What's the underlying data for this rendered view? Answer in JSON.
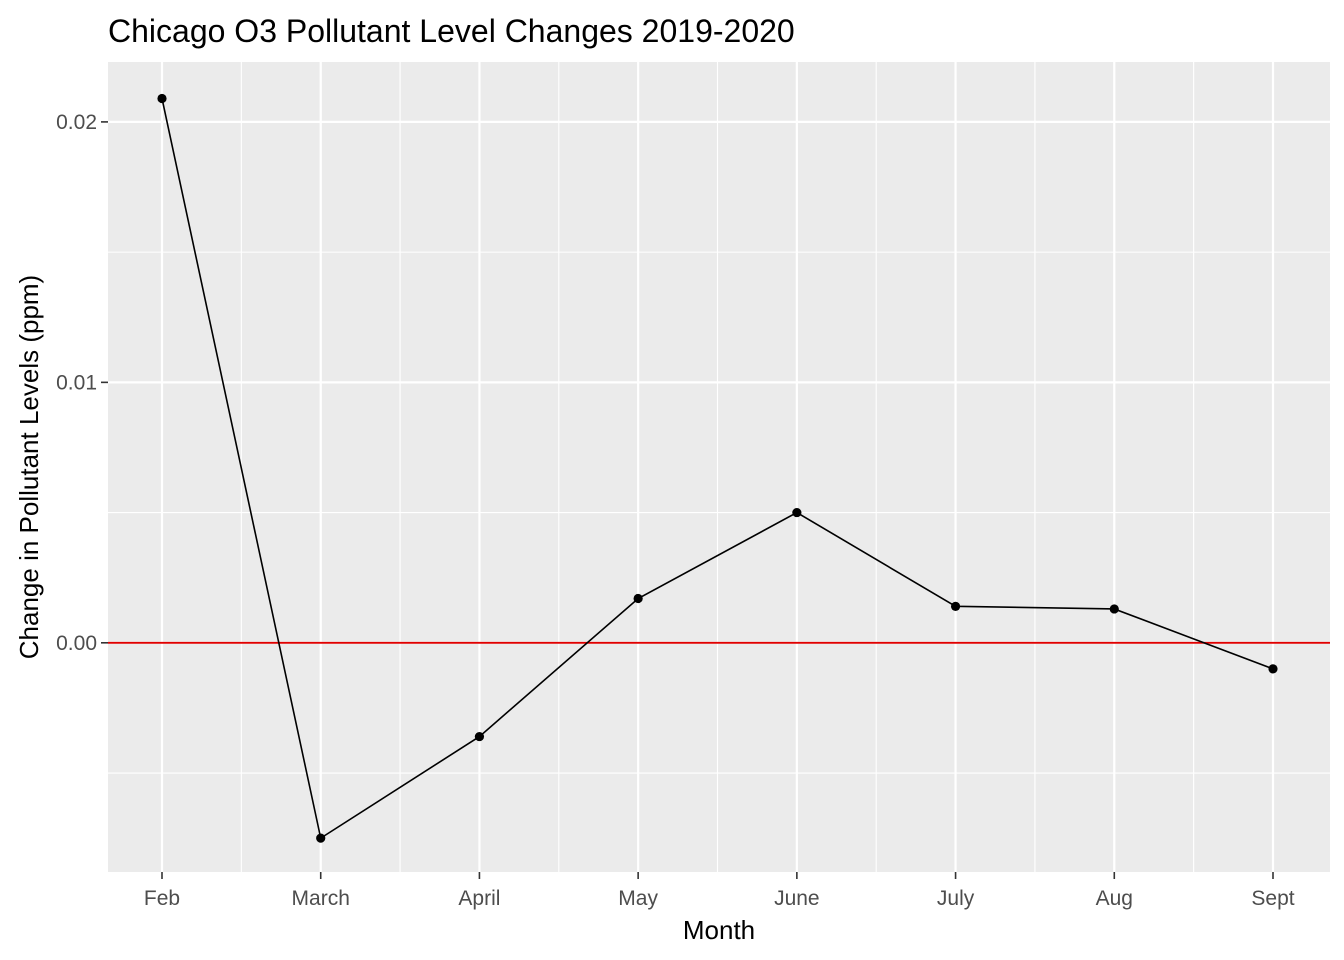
{
  "chart_data": {
    "type": "line",
    "title": "Chicago O3 Pollutant Level Changes 2019-2020",
    "xlabel": "Month",
    "ylabel": "Change in Pollutant Levels (ppm)",
    "categories": [
      "Feb",
      "March",
      "April",
      "May",
      "June",
      "July",
      "Aug",
      "Sept"
    ],
    "series": [
      {
        "values": [
          0.0209,
          -0.0075,
          -0.0036,
          0.0017,
          0.005,
          0.0014,
          0.0013,
          -0.001
        ]
      }
    ],
    "ylim": [
      -0.0088,
      0.0223
    ],
    "yticks": [
      {
        "value": 0.0,
        "label": "0.00"
      },
      {
        "value": 0.01,
        "label": "0.01"
      },
      {
        "value": 0.02,
        "label": "0.02"
      }
    ],
    "yminor": [
      -0.005,
      0.005,
      0.015
    ],
    "reference_line": {
      "y": 0,
      "color": "#e00000"
    },
    "grid": true,
    "legend": "none",
    "colors": {
      "panel": "#ebebeb",
      "grid": "#ffffff",
      "line": "#000000",
      "point": "#000000",
      "tick_text": "#4d4d4d"
    }
  }
}
